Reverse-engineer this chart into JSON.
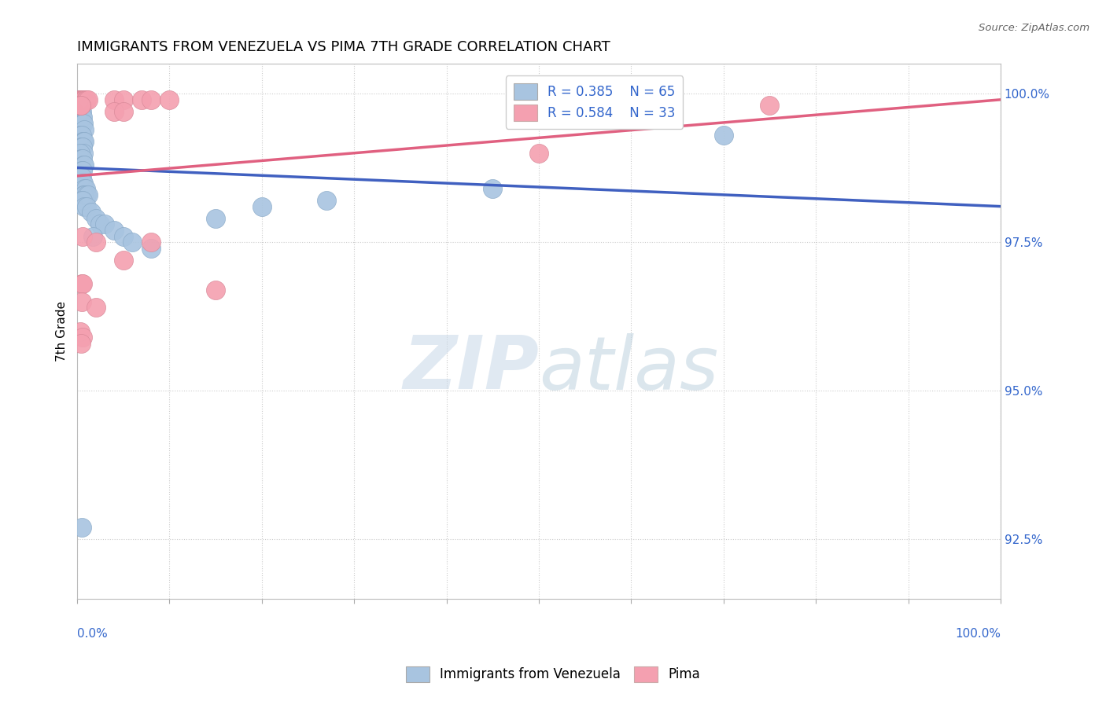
{
  "title": "IMMIGRANTS FROM VENEZUELA VS PIMA 7TH GRADE CORRELATION CHART",
  "source": "Source: ZipAtlas.com",
  "ylabel": "7th Grade",
  "legend_blue_r": "R = 0.385",
  "legend_blue_n": "N = 65",
  "legend_pink_r": "R = 0.584",
  "legend_pink_n": "N = 33",
  "blue_color": "#a8c4e0",
  "pink_color": "#f4a0b0",
  "blue_line_color": "#4060c0",
  "pink_line_color": "#e06080",
  "blue_scatter": [
    [
      0.001,
      0.999
    ],
    [
      0.002,
      0.999
    ],
    [
      0.003,
      0.999
    ],
    [
      0.004,
      0.999
    ],
    [
      0.003,
      0.998
    ],
    [
      0.004,
      0.998
    ],
    [
      0.005,
      0.998
    ],
    [
      0.005,
      0.997
    ],
    [
      0.002,
      0.997
    ],
    [
      0.003,
      0.997
    ],
    [
      0.005,
      0.996
    ],
    [
      0.006,
      0.996
    ],
    [
      0.003,
      0.995
    ],
    [
      0.004,
      0.995
    ],
    [
      0.005,
      0.995
    ],
    [
      0.006,
      0.995
    ],
    [
      0.007,
      0.995
    ],
    [
      0.008,
      0.994
    ],
    [
      0.003,
      0.993
    ],
    [
      0.004,
      0.993
    ],
    [
      0.005,
      0.993
    ],
    [
      0.006,
      0.992
    ],
    [
      0.007,
      0.992
    ],
    [
      0.008,
      0.992
    ],
    [
      0.004,
      0.991
    ],
    [
      0.005,
      0.991
    ],
    [
      0.006,
      0.991
    ],
    [
      0.007,
      0.99
    ],
    [
      0.003,
      0.99
    ],
    [
      0.004,
      0.989
    ],
    [
      0.005,
      0.989
    ],
    [
      0.006,
      0.989
    ],
    [
      0.007,
      0.988
    ],
    [
      0.008,
      0.988
    ],
    [
      0.005,
      0.987
    ],
    [
      0.006,
      0.987
    ],
    [
      0.004,
      0.986
    ],
    [
      0.005,
      0.986
    ],
    [
      0.006,
      0.985
    ],
    [
      0.007,
      0.985
    ],
    [
      0.008,
      0.984
    ],
    [
      0.009,
      0.984
    ],
    [
      0.007,
      0.983
    ],
    [
      0.008,
      0.983
    ],
    [
      0.01,
      0.983
    ],
    [
      0.012,
      0.983
    ],
    [
      0.005,
      0.982
    ],
    [
      0.006,
      0.982
    ],
    [
      0.008,
      0.981
    ],
    [
      0.01,
      0.981
    ],
    [
      0.015,
      0.98
    ],
    [
      0.02,
      0.979
    ],
    [
      0.025,
      0.978
    ],
    [
      0.03,
      0.978
    ],
    [
      0.04,
      0.977
    ],
    [
      0.017,
      0.976
    ],
    [
      0.05,
      0.976
    ],
    [
      0.06,
      0.975
    ],
    [
      0.08,
      0.974
    ],
    [
      0.15,
      0.979
    ],
    [
      0.2,
      0.981
    ],
    [
      0.27,
      0.982
    ],
    [
      0.45,
      0.984
    ],
    [
      0.7,
      0.993
    ],
    [
      0.005,
      0.927
    ]
  ],
  "pink_scatter": [
    [
      0.002,
      0.999
    ],
    [
      0.003,
      0.999
    ],
    [
      0.004,
      0.999
    ],
    [
      0.005,
      0.999
    ],
    [
      0.006,
      0.999
    ],
    [
      0.007,
      0.999
    ],
    [
      0.008,
      0.999
    ],
    [
      0.009,
      0.999
    ],
    [
      0.01,
      0.999
    ],
    [
      0.012,
      0.999
    ],
    [
      0.04,
      0.999
    ],
    [
      0.05,
      0.999
    ],
    [
      0.07,
      0.999
    ],
    [
      0.08,
      0.999
    ],
    [
      0.1,
      0.999
    ],
    [
      0.003,
      0.998
    ],
    [
      0.004,
      0.998
    ],
    [
      0.04,
      0.997
    ],
    [
      0.05,
      0.997
    ],
    [
      0.006,
      0.976
    ],
    [
      0.02,
      0.975
    ],
    [
      0.08,
      0.975
    ],
    [
      0.05,
      0.972
    ],
    [
      0.005,
      0.968
    ],
    [
      0.006,
      0.968
    ],
    [
      0.15,
      0.967
    ],
    [
      0.005,
      0.965
    ],
    [
      0.02,
      0.964
    ],
    [
      0.003,
      0.96
    ],
    [
      0.006,
      0.959
    ],
    [
      0.004,
      0.958
    ],
    [
      0.5,
      0.99
    ],
    [
      0.75,
      0.998
    ]
  ],
  "xlim": [
    0.0,
    1.0
  ],
  "ylim": [
    0.915,
    1.005
  ],
  "ytick_vals": [
    1.0,
    0.975,
    0.95,
    0.925
  ],
  "ytick_labels": [
    "100.0%",
    "97.5%",
    "95.0%",
    "92.5%"
  ],
  "xtick_vals": [
    0.0,
    0.1,
    0.2,
    0.3,
    0.4,
    0.5,
    0.6,
    0.7,
    0.8,
    0.9,
    1.0
  ],
  "background_color": "#ffffff",
  "grid_color": "#cccccc",
  "watermark_text": "ZIPatlas",
  "title_fontsize": 13,
  "axis_label_fontsize": 11,
  "tick_label_fontsize": 11,
  "legend_fontsize": 12
}
